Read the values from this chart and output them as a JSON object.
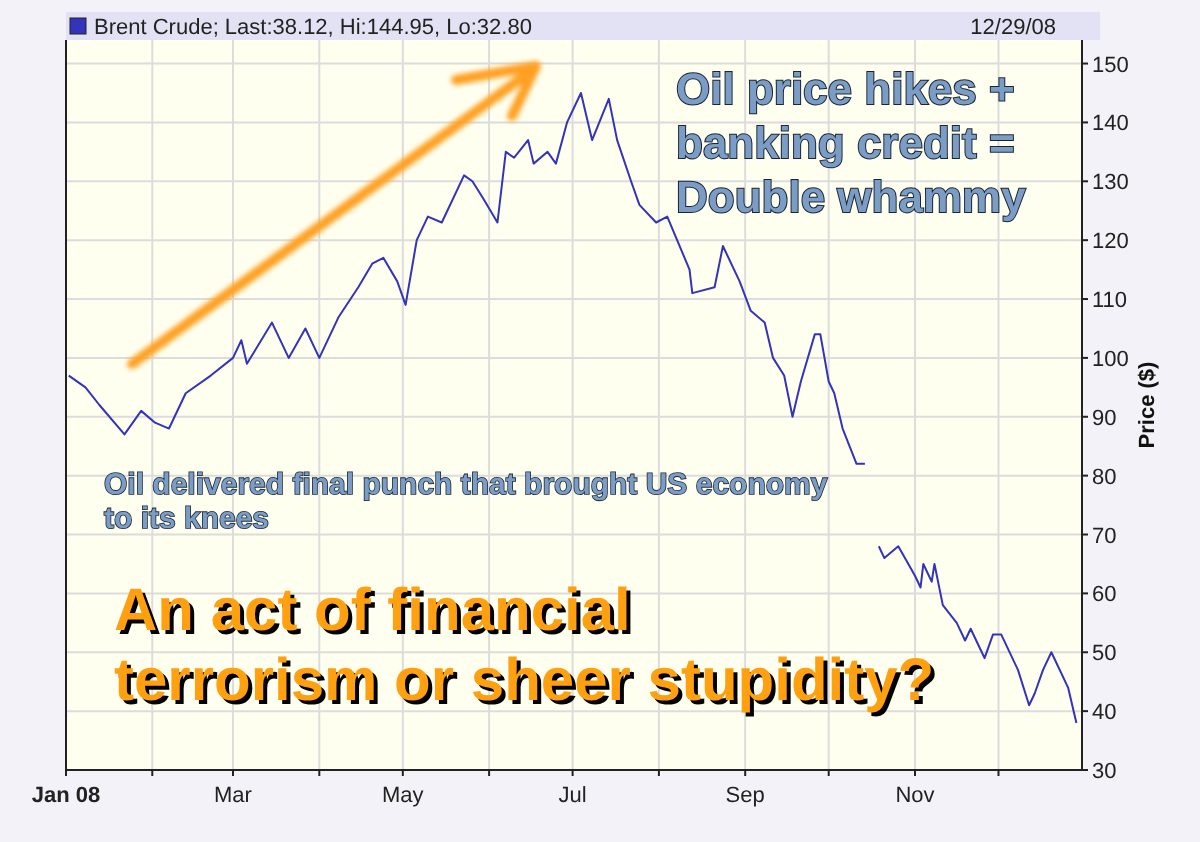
{
  "chart_data": {
    "type": "line",
    "ylabel": "Price ($)",
    "annotations": [
      "; Last:38.12, Hi:144.95, Lo:32.80",
      "12/29/08",
      "Oil price hikes +\nbanking credit =\nDouble whammy",
      "Oil delivered final punch that brought US economy\nto its knees",
      "An act of financial\nterrorism or sheer stupidity?"
    ],
    "x": [
      "2008-01-02",
      "2008-01-08",
      "2008-01-13",
      "2008-01-22",
      "2008-01-28",
      "2008-02-02",
      "2008-02-07",
      "2008-02-13",
      "2008-02-22",
      "2008-03-01",
      "2008-03-04",
      "2008-03-06",
      "2008-03-15",
      "2008-03-21",
      "2008-03-27",
      "2008-04-01",
      "2008-04-08",
      "2008-04-15",
      "2008-04-20",
      "2008-04-24",
      "2008-04-29",
      "2008-05-02",
      "2008-05-06",
      "2008-05-10",
      "2008-05-15",
      "2008-05-23",
      "2008-05-26",
      "2008-05-30",
      "2008-06-04",
      "2008-06-07",
      "2008-06-10",
      "2008-06-15",
      "2008-06-17",
      "2008-06-22",
      "2008-06-25",
      "2008-06-29",
      "2008-07-04",
      "2008-07-08",
      "2008-07-14",
      "2008-07-17",
      "2008-07-22",
      "2008-07-25",
      "2008-07-31",
      "2008-08-04",
      "2008-08-12",
      "2008-08-13",
      "2008-08-21",
      "2008-08-24",
      "2008-08-30",
      "2008-09-03",
      "2008-09-08",
      "2008-09-11",
      "2008-09-15",
      "2008-09-18",
      "2008-09-21",
      "2008-09-26",
      "2008-09-28",
      "2008-10-01",
      "2008-10-03",
      "2008-10-06",
      "2008-10-11",
      "2008-10-14",
      "2008-10-17",
      "2008-10-19",
      "2008-10-21",
      "2008-10-26",
      "2008-11-01",
      "2008-11-03",
      "2008-11-04",
      "2008-11-07",
      "2008-11-08",
      "2008-11-11",
      "2008-11-16",
      "2008-11-19",
      "2008-11-21",
      "2008-11-25",
      "2008-11-26",
      "2008-11-29",
      "2008-12-02",
      "2008-12-08",
      "2008-12-12",
      "2008-12-14",
      "2008-12-17",
      "2008-12-20",
      "2008-12-26",
      "2008-12-29"
    ],
    "series": [
      {
        "name": "Brent Crude",
        "color": "#3333bb",
        "values": [
          97,
          95,
          92,
          87,
          91,
          89,
          88,
          94,
          97,
          100,
          103,
          99,
          106,
          100,
          105,
          100,
          107,
          112,
          116,
          117,
          113,
          109,
          120,
          124,
          123,
          131,
          130,
          127,
          123,
          135,
          134,
          137,
          133,
          135,
          133,
          140,
          145,
          137,
          144,
          137,
          130,
          126,
          123,
          124,
          115,
          111,
          112,
          119,
          113,
          108,
          106,
          100,
          97,
          90,
          96,
          104,
          104,
          96,
          94,
          88,
          82,
          82,
          null,
          68,
          66,
          68,
          63,
          61,
          65,
          62,
          65,
          58,
          55,
          52,
          54,
          50,
          49,
          53,
          53,
          47,
          41,
          43,
          47,
          50,
          44,
          38
        ]
      }
    ],
    "xlim": [
      "2008-01-01",
      "2008-12-31"
    ],
    "xticks": [
      {
        "value": "2008-01-01",
        "label": "Jan 08"
      },
      {
        "value": "2008-02-01",
        "label": null
      },
      {
        "value": "2008-03-01",
        "label": "Mar"
      },
      {
        "value": "2008-04-01",
        "label": null
      },
      {
        "value": "2008-05-01",
        "label": "May"
      },
      {
        "value": "2008-06-01",
        "label": null
      },
      {
        "value": "2008-07-01",
        "label": "Jul"
      },
      {
        "value": "2008-08-01",
        "label": null
      },
      {
        "value": "2008-09-01",
        "label": "Sep"
      },
      {
        "value": "2008-10-01",
        "label": null
      },
      {
        "value": "2008-11-01",
        "label": "Nov"
      },
      {
        "value": "2008-12-01",
        "label": null
      }
    ],
    "ylim": [
      30,
      154
    ],
    "yticks": [
      30,
      40,
      50,
      60,
      70,
      80,
      90,
      100,
      110,
      120,
      130,
      140,
      150
    ],
    "grid": true,
    "legend": "top left",
    "marker": "none",
    "line_style": "solid"
  }
}
